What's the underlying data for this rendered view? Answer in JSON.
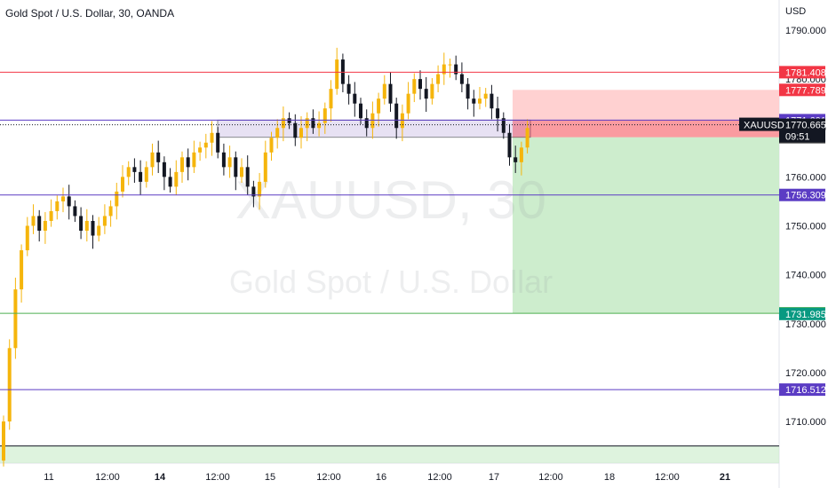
{
  "header": {
    "title": "Gold Spot / U.S. Dollar, 30, OANDA"
  },
  "watermark": {
    "symbol": "XAUUSD, 30",
    "description": "Gold Spot / U.S. Dollar"
  },
  "colors": {
    "candle_up": "#f5b50c",
    "candle_down": "#131722",
    "red_line": "#f23645",
    "blue_line": "#5b3cc4",
    "green_line": "#4caf50",
    "target_zone": "#c8ebc8",
    "stop_zone": "#ffcccc"
  },
  "chart_data": {
    "type": "candlestick",
    "currency": "USD",
    "ylim": [
      1702,
      1796
    ],
    "yticks": [
      "1790.000",
      "1780.000",
      "1770.000",
      "1760.000",
      "1750.000",
      "1740.000",
      "1730.000",
      "1720.000",
      "1710.000"
    ],
    "ytick_values": [
      1790,
      1780,
      1770,
      1760,
      1750,
      1740,
      1730,
      1720,
      1710
    ],
    "xticks": [
      "11",
      "12:00",
      "14",
      "12:00",
      "15",
      "12:00",
      "16",
      "12:00",
      "17",
      "12:00",
      "18",
      "12:00",
      "21"
    ],
    "xtick_bold": [
      false,
      false,
      true,
      false,
      false,
      false,
      false,
      false,
      false,
      false,
      false,
      false,
      true
    ],
    "series_close": [
      1710,
      1725,
      1737,
      1745,
      1750,
      1752,
      1749,
      1751,
      1753,
      1755,
      1756,
      1754,
      1752,
      1749,
      1751,
      1748,
      1750,
      1752,
      1754,
      1757,
      1760,
      1762,
      1761,
      1759,
      1762,
      1765,
      1763,
      1760,
      1758,
      1761,
      1764,
      1762,
      1765,
      1766,
      1767,
      1769,
      1765,
      1762,
      1764,
      1760,
      1762,
      1758,
      1756,
      1759,
      1765,
      1768,
      1770,
      1772,
      1771,
      1768,
      1770,
      1772,
      1770,
      1771,
      1774,
      1778,
      1784,
      1779,
      1777,
      1775,
      1772,
      1770,
      1773,
      1776,
      1779,
      1775,
      1770,
      1773,
      1777,
      1780,
      1778,
      1776,
      1779,
      1781,
      1783,
      1783,
      1781,
      1779,
      1776,
      1775,
      1776,
      1777,
      1774,
      1772,
      1769,
      1764,
      1763,
      1766,
      1770
    ],
    "horizontal_levels": [
      {
        "price": 1781.408,
        "label": "1781.408",
        "color": "#f23645",
        "text": "#ffffff"
      },
      {
        "price": 1777.789,
        "label": "1777.789",
        "color": "#f23645",
        "text": "#ffffff"
      },
      {
        "price": 1771.601,
        "label": "1771.601",
        "color": "#5b3cc4",
        "text": "#ffffff"
      },
      {
        "price": 1770.665,
        "label": "1770.665",
        "color": "#131722",
        "text": "#ffffff"
      },
      {
        "price": 1768.109,
        "label": "1768.109",
        "color": "#535353",
        "text": "#ffffff"
      },
      {
        "price": 1756.309,
        "label": "1756.309",
        "color": "#5b3cc4",
        "text": "#ffffff"
      },
      {
        "price": 1732.111,
        "label": "1732.111",
        "color": "#4caf50",
        "text": "#ffffff"
      },
      {
        "price": 1731.985,
        "label": "1731.985",
        "color": "#089981",
        "text": "#ffffff"
      },
      {
        "price": 1716.512,
        "label": "1716.512",
        "color": "#5b3cc4",
        "text": "#ffffff"
      }
    ],
    "symbol_tag": "XAUUSD",
    "countdown": "09:51",
    "position": {
      "entry": 1768.109,
      "stop": 1777.789,
      "target": 1732.111
    },
    "zone_box": {
      "top": 1771.601,
      "bottom": 1768.109
    },
    "base_line": 1705
  }
}
